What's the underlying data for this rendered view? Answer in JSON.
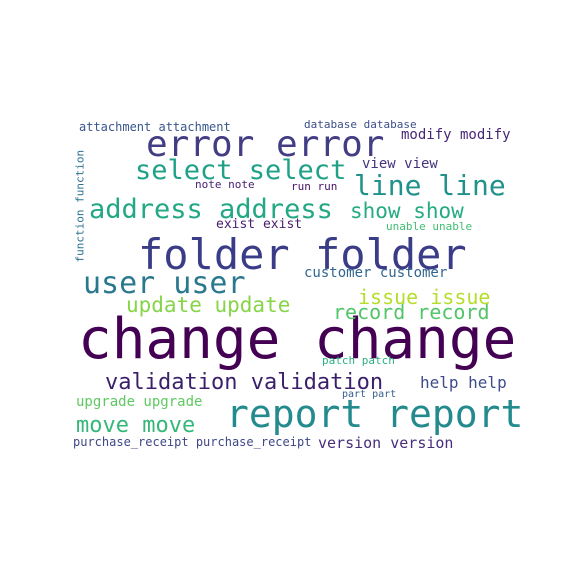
{
  "words": {
    "change": {
      "text": "change change",
      "color": "#440154"
    },
    "folder": {
      "text": "folder folder",
      "color": "#3b3c88"
    },
    "error": {
      "text": "error error",
      "color": "#433d84"
    },
    "report": {
      "text": "report report",
      "color": "#238a8d"
    },
    "address": {
      "text": "address address",
      "color": "#22a884"
    },
    "user": {
      "text": "user user",
      "color": "#2a788e"
    },
    "select": {
      "text": "select select",
      "color": "#1fa187"
    },
    "line": {
      "text": "line line",
      "color": "#21918c"
    },
    "validation": {
      "text": "validation validation",
      "color": "#3b1f6b"
    },
    "move": {
      "text": "move move",
      "color": "#35b779"
    },
    "update": {
      "text": "update update",
      "color": "#86d549"
    },
    "show": {
      "text": "show show",
      "color": "#25ab82"
    },
    "record": {
      "text": "record record",
      "color": "#52c569"
    },
    "issue": {
      "text": "issue issue",
      "color": "#b5de2b"
    },
    "upgrade": {
      "text": "upgrade upgrade",
      "color": "#5ec962"
    },
    "help": {
      "text": "help help",
      "color": "#3e4c8a"
    },
    "version": {
      "text": "version version",
      "color": "#472d7b"
    },
    "customer": {
      "text": "customer customer",
      "color": "#31668e"
    },
    "modify": {
      "text": "modify modify",
      "color": "#482677"
    },
    "view": {
      "text": "view view",
      "color": "#46337e"
    },
    "exist": {
      "text": "exist exist",
      "color": "#481c6e"
    },
    "purchase": {
      "text": "purchase_receipt purchase_receipt",
      "color": "#3f4788"
    },
    "attachment": {
      "text": "attachment attachment",
      "color": "#39568c"
    },
    "database": {
      "text": "database database",
      "color": "#3d4e8a"
    },
    "note": {
      "text": "note note",
      "color": "#482173"
    },
    "run": {
      "text": "run run",
      "color": "#471365"
    },
    "unable": {
      "text": "unable unable",
      "color": "#40bd72"
    },
    "patch": {
      "text": "patch patch",
      "color": "#29af7f"
    },
    "part": {
      "text": "part part",
      "color": "#355f8d"
    },
    "function": {
      "text": "function function",
      "color": "#2c718e"
    }
  }
}
